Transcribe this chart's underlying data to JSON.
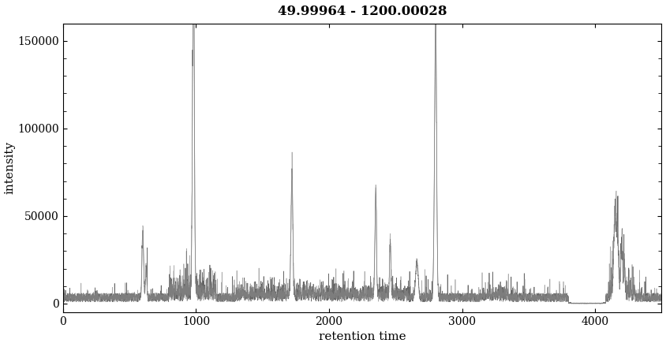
{
  "title": "49.99964 - 1200.00028",
  "xlabel": "retention time",
  "ylabel": "intensity",
  "xlim": [
    0,
    4500
  ],
  "ylim": [
    -5000,
    160000
  ],
  "yticks": [
    0,
    50000,
    100000,
    150000
  ],
  "xticks": [
    0,
    1000,
    2000,
    3000,
    4000
  ],
  "background_color": "#ffffff",
  "title_fontsize": 12,
  "axis_fontsize": 11,
  "tick_fontsize": 10
}
